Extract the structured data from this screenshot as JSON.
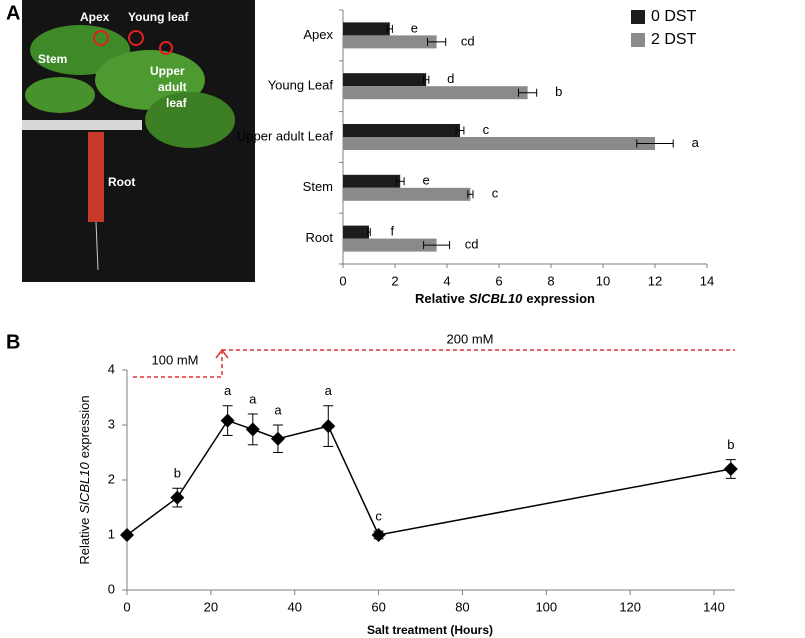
{
  "panels": [
    "A",
    "B"
  ],
  "photo_labels": {
    "apex": "Apex",
    "young_leaf": "Young leaf",
    "stem": "Stem",
    "upper_adult_leaf": [
      "Upper",
      "adult",
      "leaf"
    ],
    "root": "Root"
  },
  "chart_data": [
    {
      "type": "hbar",
      "categories": [
        "Apex",
        "Young Leaf",
        "Upper adult Leaf",
        "Stem",
        "Root"
      ],
      "series": [
        {
          "name": "0 DST",
          "color": "#1c1c1c",
          "values": [
            1.8,
            3.2,
            4.5,
            2.2,
            1.0
          ],
          "errors": [
            0.1,
            0.1,
            0.15,
            0.15,
            0.05
          ],
          "letters": [
            "e",
            "d",
            "c",
            "e",
            "f"
          ]
        },
        {
          "name": "2 DST",
          "color": "#8a8a8a",
          "values": [
            3.6,
            7.1,
            12.0,
            4.9,
            3.6
          ],
          "errors": [
            0.35,
            0.35,
            0.7,
            0.1,
            0.5
          ],
          "letters": [
            "cd",
            "b",
            "a",
            "c",
            "cd"
          ]
        }
      ],
      "xlim": [
        0,
        14
      ],
      "xticks": [
        0,
        2,
        4,
        6,
        8,
        10,
        12,
        14
      ],
      "xlabel": {
        "before": "Relative",
        "italic": "SlCBL10",
        "after": "expression"
      },
      "legend": "top-right"
    },
    {
      "type": "line",
      "x": [
        0,
        12,
        24,
        30,
        36,
        48,
        60,
        144
      ],
      "series": [
        {
          "color": "#000000",
          "values": [
            1.0,
            1.68,
            3.08,
            2.92,
            2.75,
            2.98,
            1.0,
            2.2
          ],
          "errors": [
            0.0,
            0.17,
            0.27,
            0.28,
            0.25,
            0.37,
            0.07,
            0.17
          ],
          "letters": [
            null,
            "b",
            "a",
            "a",
            "a",
            "a",
            "c",
            "b"
          ]
        }
      ],
      "xlim": [
        0,
        145
      ],
      "xticks": [
        0,
        20,
        40,
        60,
        80,
        100,
        120,
        140
      ],
      "ylim": [
        0,
        4
      ],
      "yticks": [
        0,
        1,
        2,
        3,
        4
      ],
      "xlabel": "Salt treatment (Hours)",
      "ylabel": {
        "before": "Relative",
        "italic": "SlCBL10",
        "after": "expression"
      },
      "annotations": [
        "100 mM",
        "200 mM"
      ]
    }
  ]
}
